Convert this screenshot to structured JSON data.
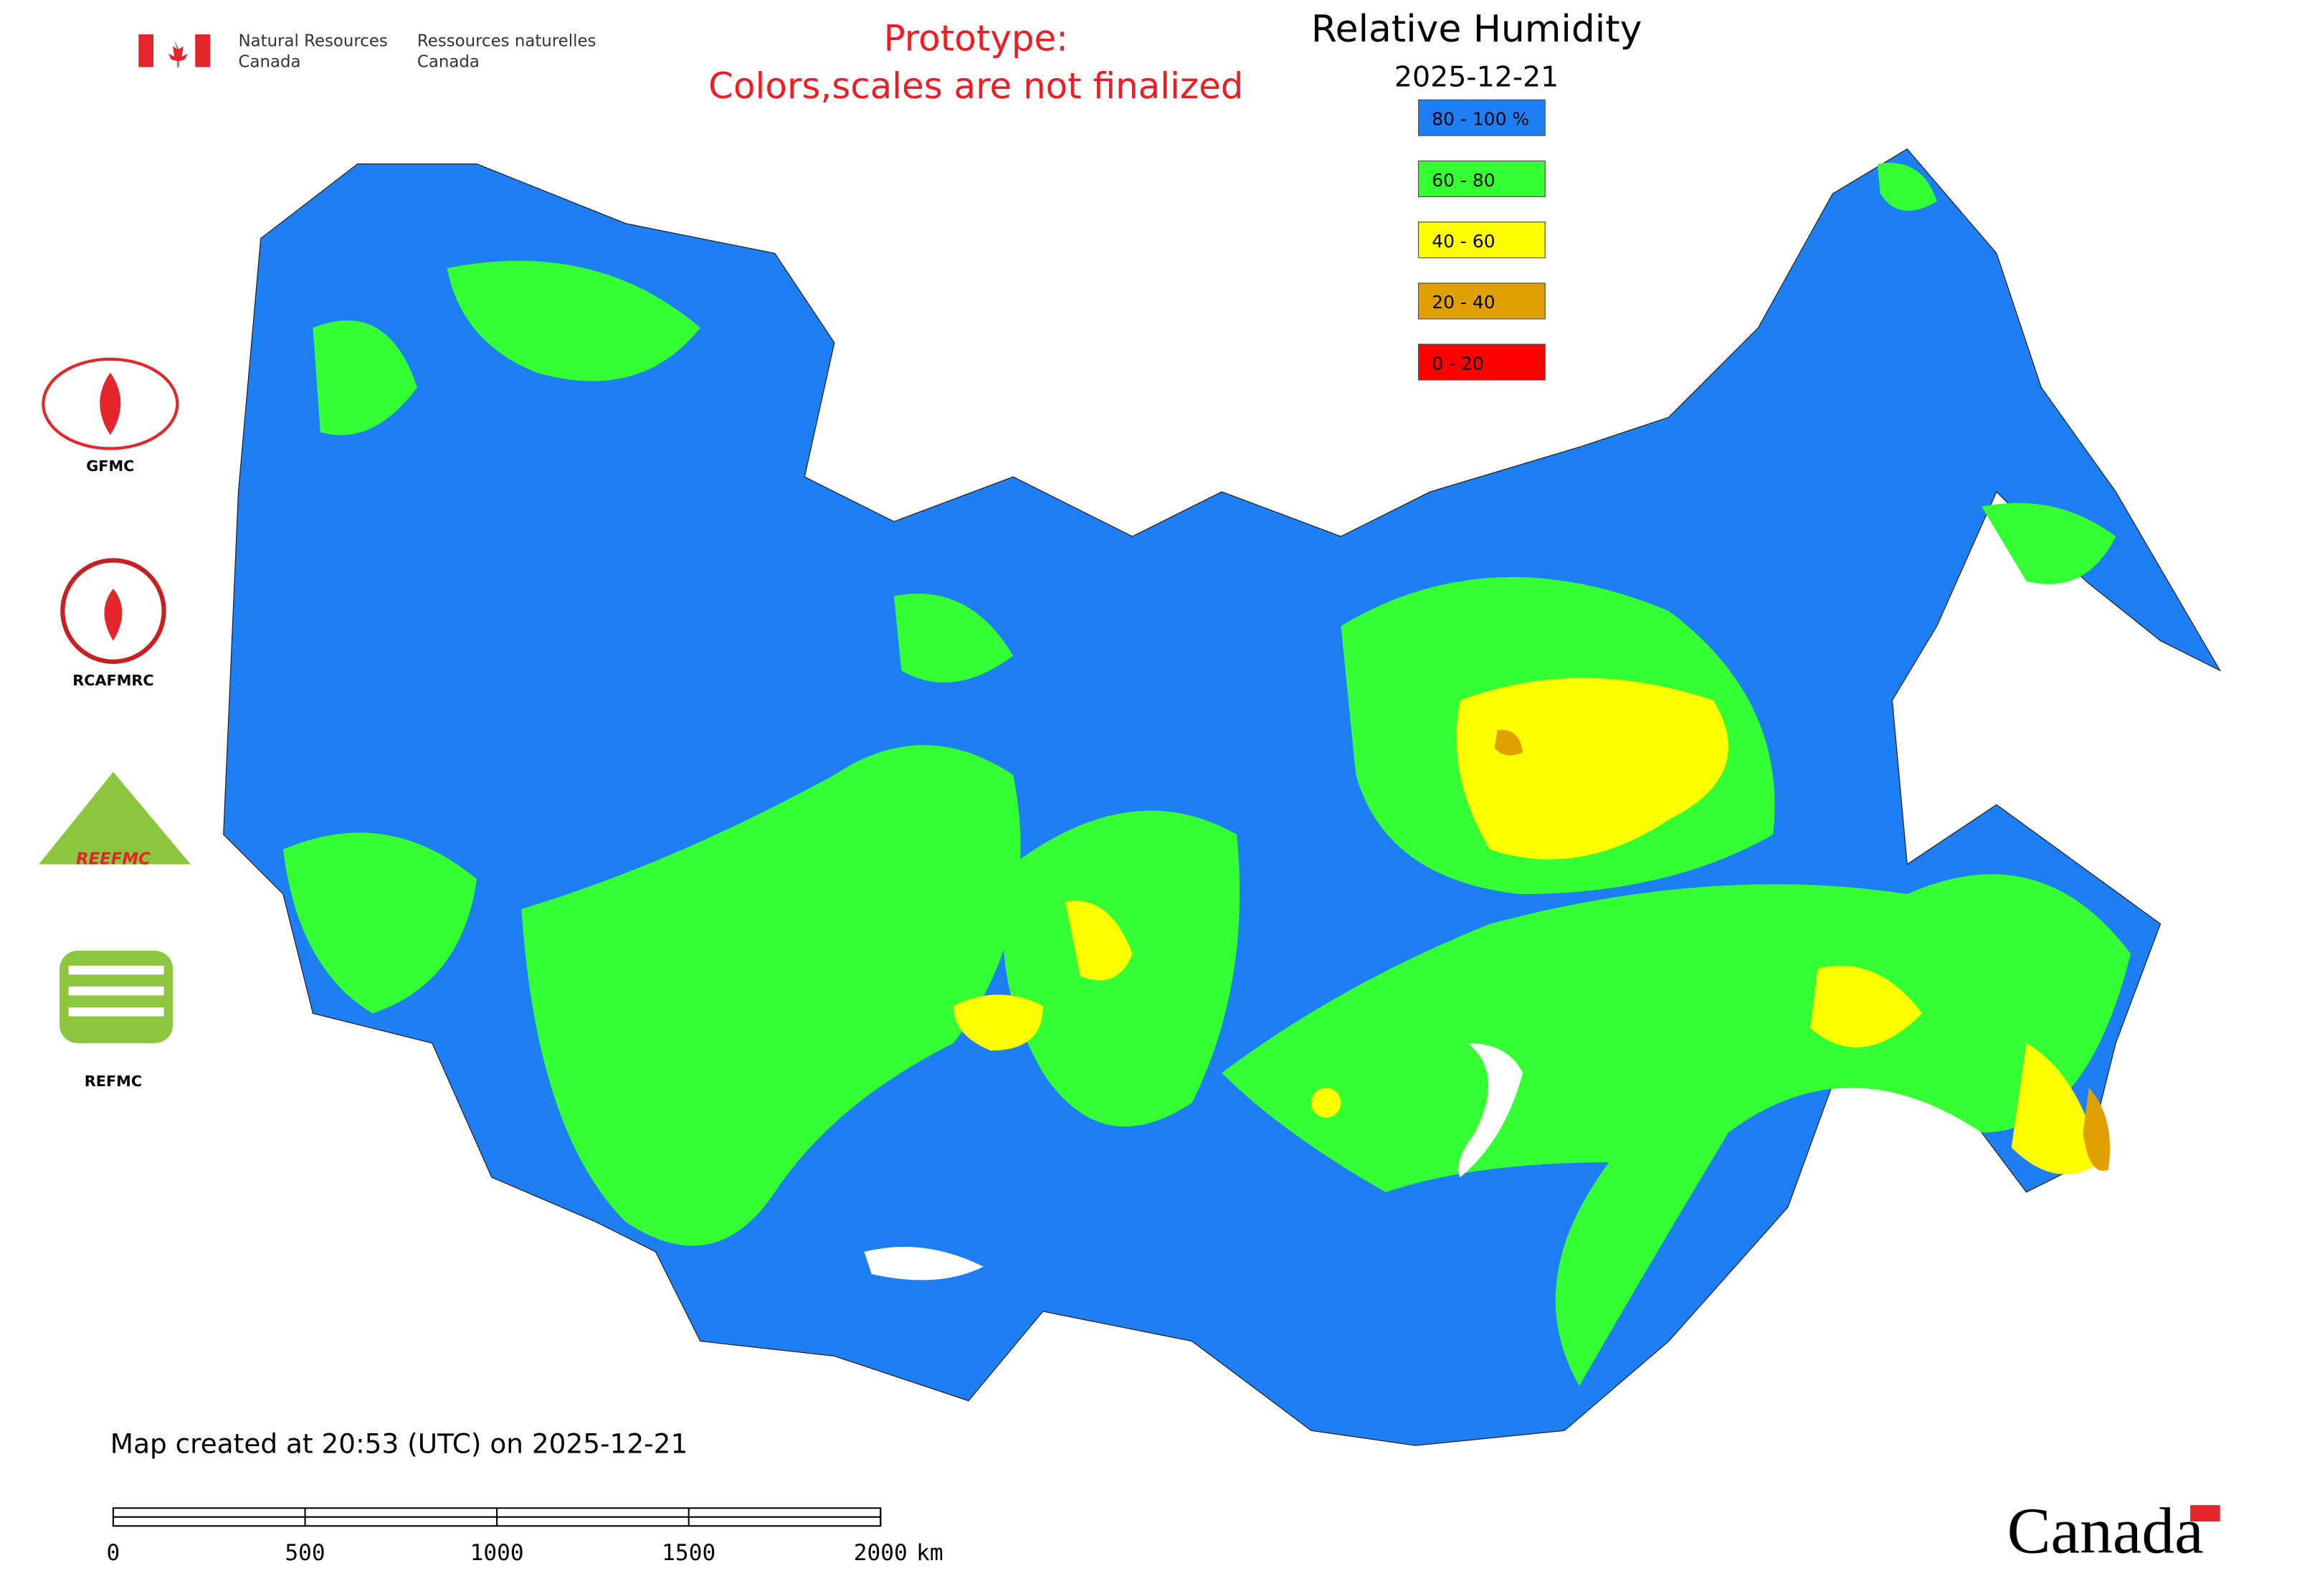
{
  "header": {
    "agency_en": [
      "Natural Resources",
      "Canada"
    ],
    "agency_fr": [
      "Ressources naturelles",
      "Canada"
    ]
  },
  "notice": [
    "Prototype:",
    "Colors,scales are not finalized"
  ],
  "title": "Relative Humidity",
  "date": "2025-12-21",
  "legend": [
    {
      "label": "80 - 100 %",
      "color": "#1e7ff5"
    },
    {
      "label": "60 - 80",
      "color": "#33ff33"
    },
    {
      "label": "40 - 60",
      "color": "#ffff00"
    },
    {
      "label": "20 - 40",
      "color": "#e0a000"
    },
    {
      "label": "0 - 20",
      "color": "#ff0000"
    }
  ],
  "logos": [
    "GFMC",
    "RCAFMRC",
    "REEFMC",
    "REFMC"
  ],
  "footer": "Map created at 20:53 (UTC) on 2025-12-21",
  "scale_bar": {
    "ticks": [
      0,
      500,
      1000,
      1500,
      2000
    ],
    "unit": "km"
  },
  "wordmark": "Canada"
}
